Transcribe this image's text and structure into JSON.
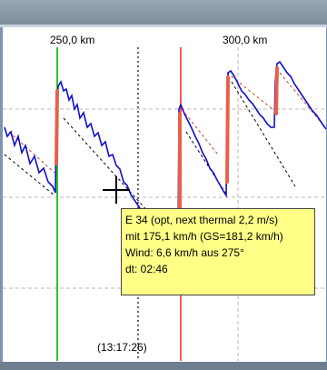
{
  "chart_data": {
    "type": "line",
    "x_ticks": [
      {
        "label": "250,0 km",
        "km": 250
      },
      {
        "label": "300,0 km",
        "km": 300
      }
    ],
    "time_label": "(13:17:26)",
    "series": [
      {
        "color": "#1010cc",
        "style": "solid"
      },
      {
        "color": "#d04020",
        "style": "dashed"
      },
      {
        "color": "#000000",
        "style": "dashed"
      }
    ],
    "markers": [
      {
        "kind": "vertical-line",
        "color": "#22cc22"
      },
      {
        "kind": "vertical-line",
        "color": "#ff2020"
      },
      {
        "kind": "cursor-line",
        "color": "#000000",
        "style": "dotted"
      }
    ],
    "grid": true
  },
  "tooltip": {
    "line1": "E 34 (opt, next thermal  2,2 m/s)",
    "line2": "mit 175,1 km/h (GS=181,2 km/h)",
    "line3": "Wind: 6,6 km/h aus 275°",
    "line4": "dt: 02:46"
  }
}
